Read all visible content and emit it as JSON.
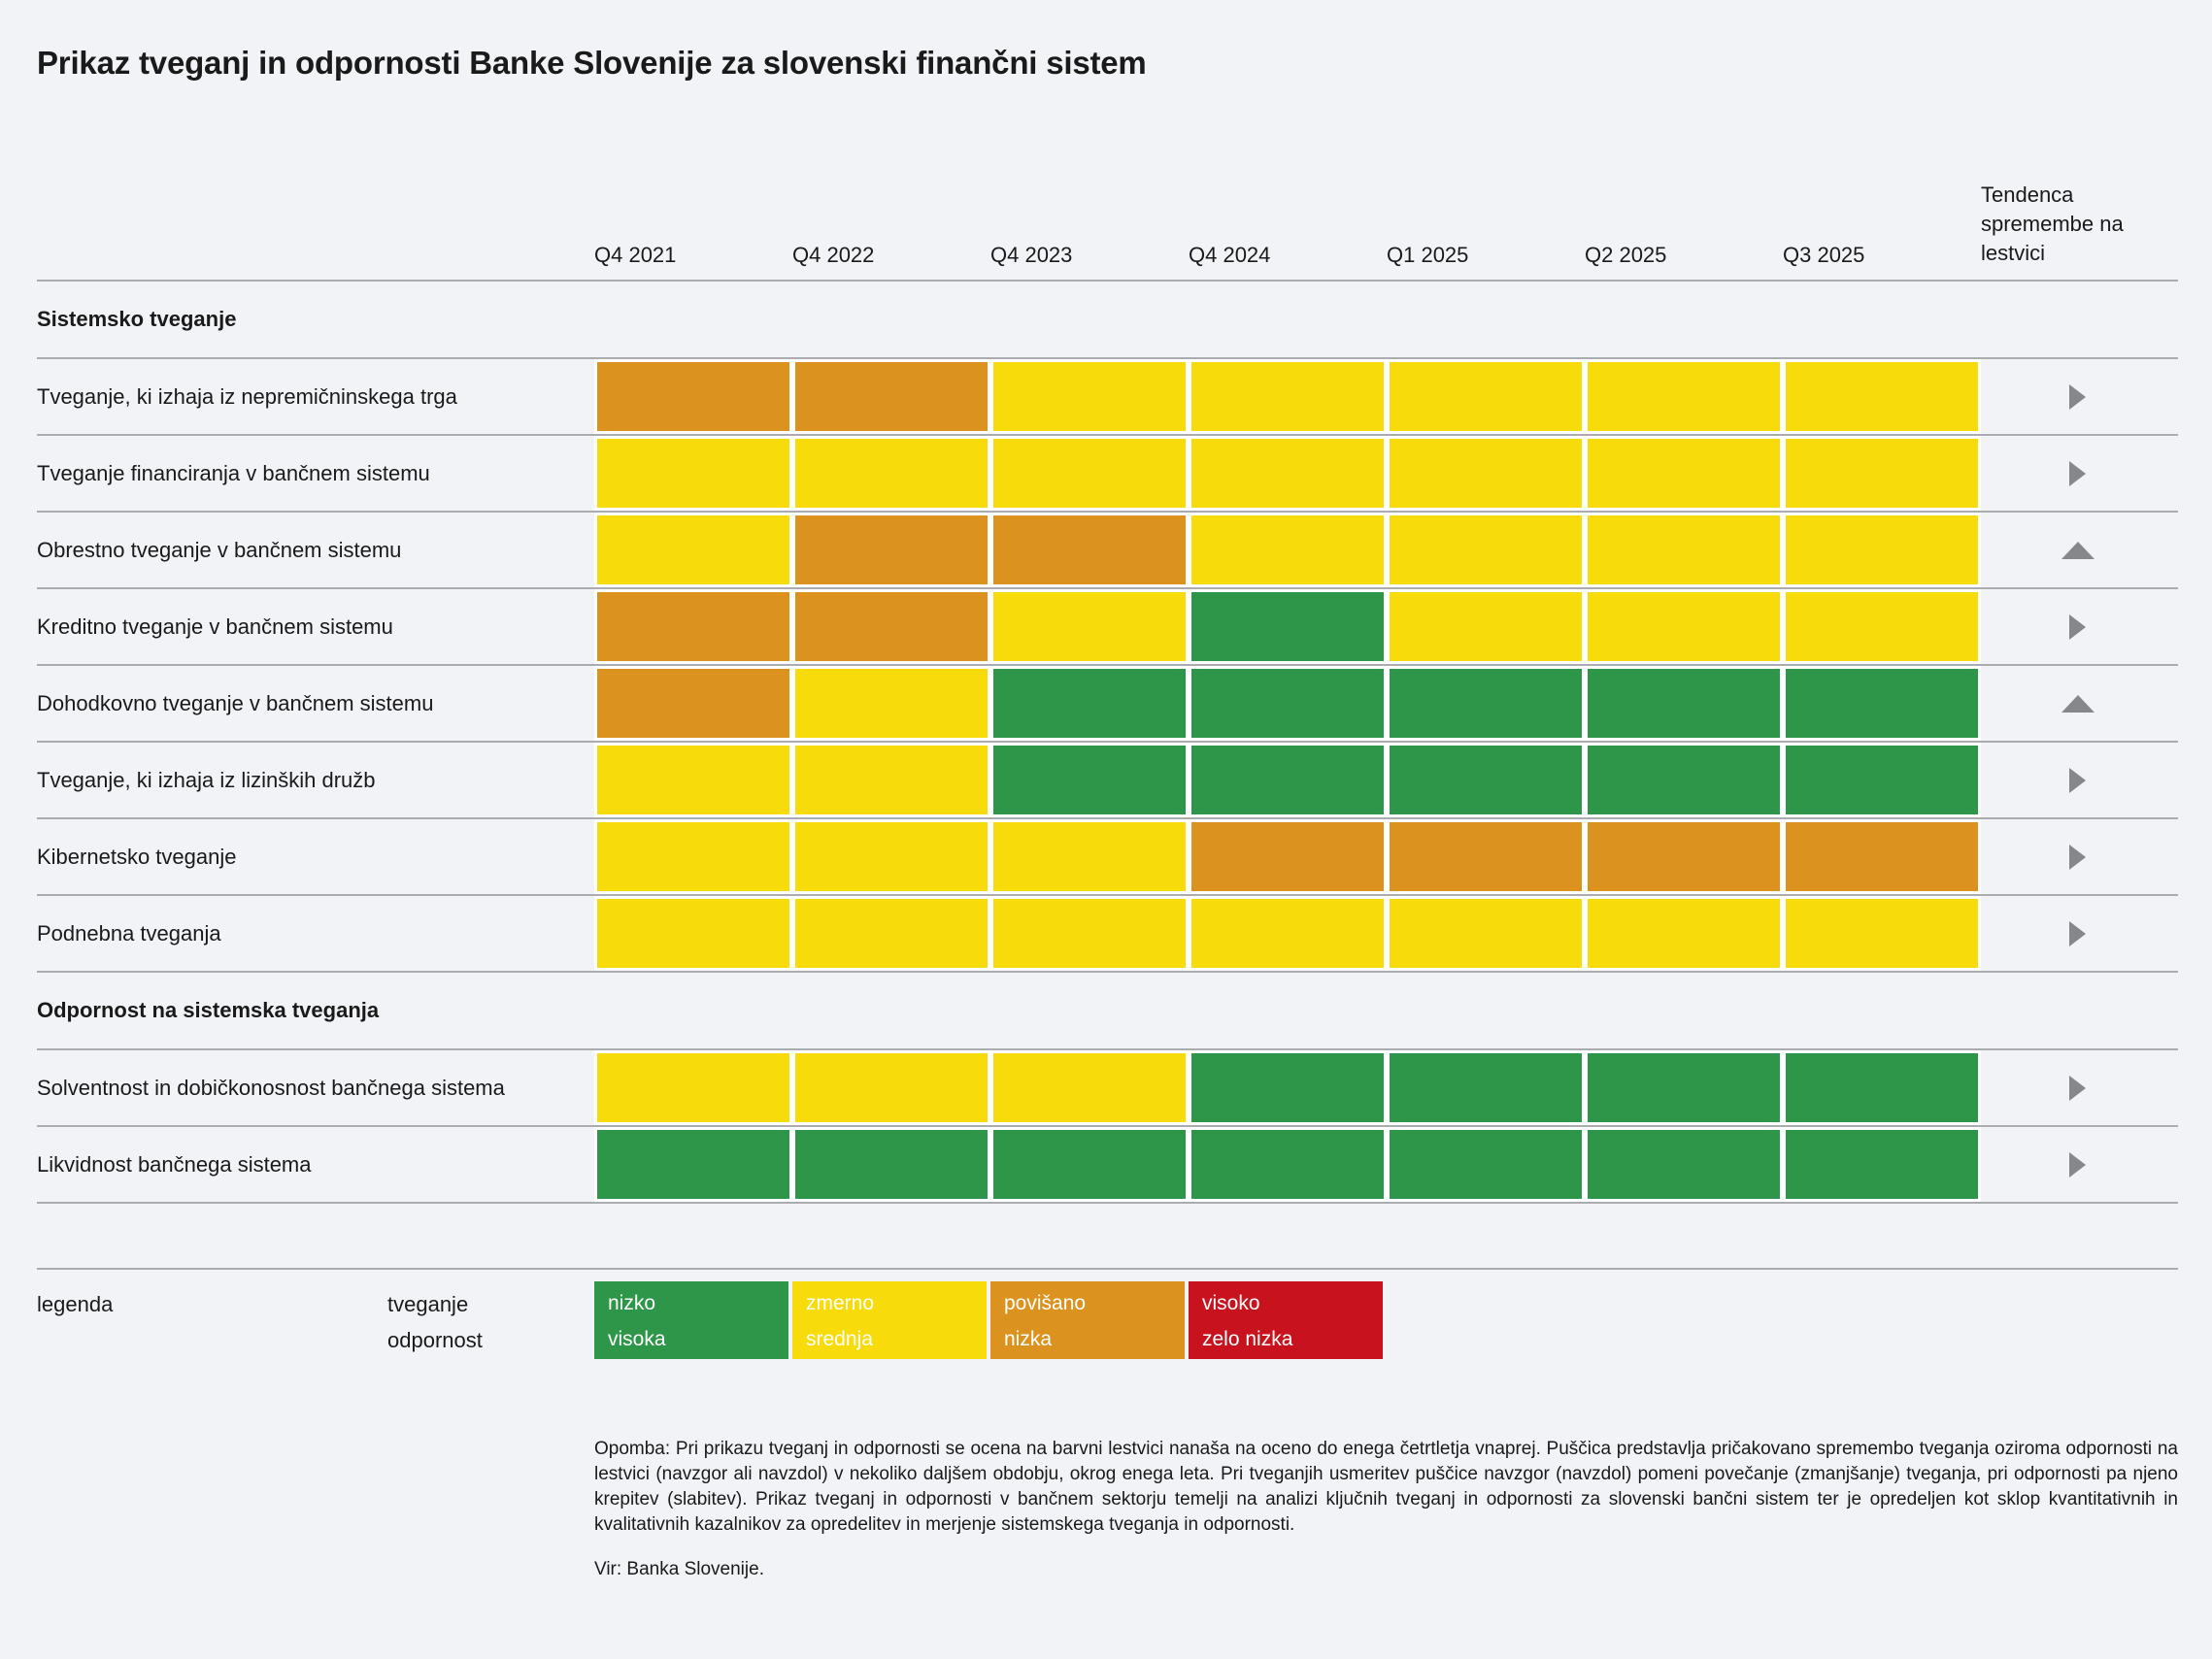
{
  "chart_data": {
    "type": "heatmap",
    "title": "Prikaz tveganj in odpornosti Banke Slovenije za slovenski finančni sistem",
    "x_labels": [
      "Q4 2021",
      "Q4 2022",
      "Q4 2023",
      "Q4 2024",
      "Q1 2025",
      "Q2 2025",
      "Q3 2025"
    ],
    "trend_column_label": "Tendenca spremembe na lestvici",
    "colors": {
      "green": "#2e9648",
      "yellow": "#f7db0a",
      "orange": "#dc921e",
      "red": "#c8121d",
      "arrow": "#85878b",
      "background": "#f2f3f6",
      "line": "#aaacb0"
    },
    "rating_scale_note": "green=nizko tveganje/visoka odpornost, yellow=zmerno/srednja, orange=povišano/nizka, red=visoko/zelo nizka",
    "sections": [
      {
        "heading": "Sistemsko tveganje",
        "rows": [
          {
            "label": "Tveganje, ki izhaja iz nepremičninskega trga",
            "ratings": [
              "orange",
              "orange",
              "yellow",
              "yellow",
              "yellow",
              "yellow",
              "yellow"
            ],
            "trend": "right"
          },
          {
            "label": "Tveganje financiranja v bančnem sistemu",
            "ratings": [
              "yellow",
              "yellow",
              "yellow",
              "yellow",
              "yellow",
              "yellow",
              "yellow"
            ],
            "trend": "right"
          },
          {
            "label": "Obrestno tveganje v bančnem sistemu",
            "ratings": [
              "yellow",
              "orange",
              "orange",
              "yellow",
              "yellow",
              "yellow",
              "yellow"
            ],
            "trend": "up"
          },
          {
            "label": "Kreditno tveganje v bančnem sistemu",
            "ratings": [
              "orange",
              "orange",
              "yellow",
              "green",
              "yellow",
              "yellow",
              "yellow"
            ],
            "trend": "right"
          },
          {
            "label": "Dohodkovno tveganje v bančnem sistemu",
            "ratings": [
              "orange",
              "yellow",
              "green",
              "green",
              "green",
              "green",
              "green"
            ],
            "trend": "up"
          },
          {
            "label": "Tveganje, ki izhaja iz lizinških družb",
            "ratings": [
              "yellow",
              "yellow",
              "green",
              "green",
              "green",
              "green",
              "green"
            ],
            "trend": "right"
          },
          {
            "label": "Kibernetsko tveganje",
            "ratings": [
              "yellow",
              "yellow",
              "yellow",
              "orange",
              "orange",
              "orange",
              "orange"
            ],
            "trend": "right"
          },
          {
            "label": "Podnebna tveganja",
            "ratings": [
              "yellow",
              "yellow",
              "yellow",
              "yellow",
              "yellow",
              "yellow",
              "yellow"
            ],
            "trend": "right"
          }
        ]
      },
      {
        "heading": "Odpornost na sistemska tveganja",
        "rows": [
          {
            "label": "Solventnost in dobičkonosnost bančnega sistema",
            "ratings": [
              "yellow",
              "yellow",
              "yellow",
              "green",
              "green",
              "green",
              "green"
            ],
            "trend": "right"
          },
          {
            "label": "Likvidnost bančnega sistema",
            "ratings": [
              "green",
              "green",
              "green",
              "green",
              "green",
              "green",
              "green"
            ],
            "trend": "right"
          }
        ]
      }
    ],
    "legend": {
      "label": "legenda",
      "axis_line1": "tveganje",
      "axis_line2": "odpornost",
      "items": [
        {
          "color": "#2e9648",
          "line1": "nizko",
          "line2": "visoka"
        },
        {
          "color": "#f7db0a",
          "line1": "zmerno",
          "line2": "srednja"
        },
        {
          "color": "#dc921e",
          "line1": "povišano",
          "line2": "nizka"
        },
        {
          "color": "#c8121d",
          "line1": "visoko",
          "line2": "zelo nizka"
        }
      ]
    },
    "note": "Opomba: Pri prikazu tveganj in odpornosti se ocena na barvni lestvici nanaša na oceno do enega četrtletja vnaprej. Puščica predstavlja pričakovano spremembo tveganja oziroma odpornosti na lestvici (navzgor ali navzdol) v nekoliko daljšem obdobju, okrog enega leta. Pri tveganjih usmeritev puščice navzgor (navzdol) pomeni povečanje (zmanjšanje) tveganja, pri odpornosti pa njeno krepitev (slabitev). Prikaz tveganj in odpornosti v bančnem sektorju temelji na analizi ključnih tveganj in odpornosti za slovenski bančni sistem ter je opredeljen kot sklop kvantitativnih in kvalitativnih kazalnikov za opredelitev in merjenje sistemskega tveganja in odpornosti.",
    "source": "Vir: Banka Slovenije."
  }
}
